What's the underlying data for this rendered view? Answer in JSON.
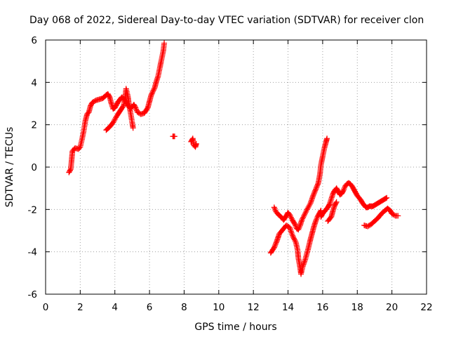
{
  "chart_data": {
    "type": "scatter",
    "title": "Day 068 of 2022, Sidereal Day-to-day VTEC variation (SDTVAR) for receiver clon",
    "xlabel": "GPS time / hours",
    "ylabel": "SDTVAR / TECUs",
    "xlim": [
      0,
      22
    ],
    "ylim": [
      -6,
      6
    ],
    "x_ticks": [
      "0",
      "2",
      "4",
      "6",
      "8",
      "10",
      "12",
      "14",
      "16",
      "18",
      "20",
      "22"
    ],
    "y_ticks": [
      "-6",
      "-4",
      "-2",
      "0",
      "2",
      "4",
      "6"
    ],
    "grid": true,
    "marker": "plus",
    "color": "#ff0000",
    "series": [
      {
        "name": "SDTVAR",
        "segments": [
          [
            [
              1.35,
              -0.25
            ],
            [
              1.45,
              -0.1
            ],
            [
              1.5,
              0.3
            ],
            [
              1.55,
              0.75
            ],
            [
              1.7,
              0.9
            ],
            [
              1.9,
              0.85
            ],
            [
              2.0,
              0.95
            ],
            [
              2.1,
              1.3
            ],
            [
              2.2,
              1.7
            ],
            [
              2.3,
              2.2
            ],
            [
              2.4,
              2.5
            ],
            [
              2.5,
              2.6
            ],
            [
              2.6,
              2.9
            ],
            [
              2.7,
              3.05
            ],
            [
              2.9,
              3.15
            ],
            [
              3.1,
              3.2
            ],
            [
              3.3,
              3.25
            ],
            [
              3.5,
              3.4
            ],
            [
              3.6,
              3.45
            ],
            [
              3.7,
              3.3
            ],
            [
              3.8,
              3.0
            ],
            [
              3.9,
              2.75
            ],
            [
              4.0,
              2.8
            ],
            [
              4.1,
              2.95
            ],
            [
              4.2,
              3.1
            ],
            [
              4.3,
              3.2
            ],
            [
              4.4,
              3.3
            ],
            [
              4.5,
              3.25
            ],
            [
              4.6,
              3.1
            ],
            [
              4.7,
              3.0
            ],
            [
              4.8,
              2.85
            ],
            [
              4.9,
              2.75
            ],
            [
              5.0,
              2.85
            ],
            [
              5.1,
              2.95
            ],
            [
              5.2,
              2.8
            ],
            [
              5.3,
              2.6
            ],
            [
              5.5,
              2.5
            ],
            [
              5.7,
              2.55
            ],
            [
              5.9,
              2.8
            ],
            [
              6.0,
              3.1
            ],
            [
              6.1,
              3.4
            ],
            [
              6.3,
              3.75
            ],
            [
              6.4,
              4.05
            ],
            [
              6.5,
              4.3
            ],
            [
              6.6,
              4.7
            ],
            [
              6.7,
              5.1
            ],
            [
              6.8,
              5.5
            ],
            [
              6.85,
              5.85
            ]
          ],
          [
            [
              3.5,
              1.75
            ],
            [
              3.7,
              1.9
            ],
            [
              3.9,
              2.1
            ],
            [
              4.1,
              2.4
            ],
            [
              4.3,
              2.65
            ],
            [
              4.5,
              2.9
            ],
            [
              4.6,
              3.3
            ],
            [
              4.65,
              3.7
            ],
            [
              4.75,
              3.35
            ],
            [
              4.8,
              3.05
            ],
            [
              4.9,
              2.6
            ],
            [
              5.0,
              2.1
            ],
            [
              5.05,
              1.85
            ]
          ],
          [
            [
              7.35,
              1.45
            ],
            [
              7.45,
              1.45
            ]
          ],
          [
            [
              8.4,
              1.2
            ],
            [
              8.5,
              1.35
            ],
            [
              8.55,
              1.05
            ],
            [
              8.65,
              0.95
            ],
            [
              8.7,
              1.1
            ]
          ],
          [
            [
              13.0,
              -4.05
            ],
            [
              13.2,
              -3.8
            ],
            [
              13.35,
              -3.5
            ],
            [
              13.5,
              -3.15
            ],
            [
              13.7,
              -2.95
            ],
            [
              13.9,
              -2.75
            ],
            [
              14.1,
              -2.85
            ],
            [
              14.2,
              -3.1
            ],
            [
              14.3,
              -3.3
            ],
            [
              14.45,
              -3.55
            ],
            [
              14.55,
              -3.9
            ],
            [
              14.6,
              -4.3
            ],
            [
              14.7,
              -4.75
            ],
            [
              14.75,
              -5.05
            ],
            [
              14.85,
              -4.7
            ],
            [
              15.0,
              -4.35
            ],
            [
              15.15,
              -3.9
            ],
            [
              15.3,
              -3.4
            ],
            [
              15.4,
              -3.1
            ],
            [
              15.5,
              -2.8
            ],
            [
              15.6,
              -2.55
            ],
            [
              15.7,
              -2.35
            ],
            [
              15.8,
              -2.2
            ],
            [
              15.9,
              -2.05
            ]
          ],
          [
            [
              13.2,
              -1.9
            ],
            [
              13.3,
              -2.1
            ],
            [
              13.45,
              -2.25
            ],
            [
              13.6,
              -2.35
            ],
            [
              13.75,
              -2.5
            ],
            [
              13.9,
              -2.3
            ],
            [
              14.0,
              -2.15
            ],
            [
              14.1,
              -2.25
            ],
            [
              14.25,
              -2.5
            ],
            [
              14.4,
              -2.7
            ],
            [
              14.5,
              -2.9
            ],
            [
              14.6,
              -2.95
            ],
            [
              14.7,
              -2.75
            ],
            [
              14.8,
              -2.5
            ],
            [
              14.95,
              -2.25
            ],
            [
              15.1,
              -2.0
            ],
            [
              15.3,
              -1.7
            ],
            [
              15.45,
              -1.35
            ],
            [
              15.6,
              -1.05
            ],
            [
              15.75,
              -0.75
            ],
            [
              15.85,
              -0.3
            ],
            [
              15.9,
              0.1
            ],
            [
              16.0,
              0.5
            ],
            [
              16.1,
              0.9
            ],
            [
              16.2,
              1.2
            ],
            [
              16.25,
              1.35
            ]
          ],
          [
            [
              15.9,
              -2.35
            ],
            [
              16.0,
              -2.2
            ],
            [
              16.1,
              -2.1
            ],
            [
              16.2,
              -2.0
            ],
            [
              16.3,
              -1.9
            ],
            [
              16.4,
              -1.75
            ],
            [
              16.5,
              -1.5
            ],
            [
              16.6,
              -1.25
            ],
            [
              16.7,
              -1.1
            ],
            [
              16.8,
              -1.0
            ],
            [
              16.9,
              -1.15
            ],
            [
              17.0,
              -1.3
            ],
            [
              17.1,
              -1.25
            ],
            [
              17.2,
              -1.1
            ],
            [
              17.3,
              -0.9
            ],
            [
              17.4,
              -0.8
            ],
            [
              17.5,
              -0.75
            ],
            [
              17.6,
              -0.8
            ],
            [
              17.7,
              -0.9
            ],
            [
              17.8,
              -1.05
            ],
            [
              17.9,
              -1.2
            ],
            [
              18.0,
              -1.35
            ],
            [
              18.1,
              -1.45
            ],
            [
              18.2,
              -1.55
            ],
            [
              18.3,
              -1.7
            ],
            [
              18.4,
              -1.8
            ],
            [
              18.5,
              -1.9
            ],
            [
              18.6,
              -1.9
            ],
            [
              18.7,
              -1.85
            ],
            [
              18.8,
              -1.85
            ],
            [
              18.9,
              -1.85
            ],
            [
              19.0,
              -1.8
            ],
            [
              19.1,
              -1.75
            ],
            [
              19.2,
              -1.7
            ],
            [
              19.3,
              -1.65
            ],
            [
              19.4,
              -1.6
            ],
            [
              19.5,
              -1.55
            ],
            [
              19.6,
              -1.5
            ],
            [
              19.7,
              -1.45
            ]
          ],
          [
            [
              16.3,
              -2.55
            ],
            [
              16.5,
              -2.35
            ],
            [
              16.6,
              -2.05
            ],
            [
              16.7,
              -1.8
            ],
            [
              16.8,
              -1.65
            ]
          ],
          [
            [
              18.4,
              -2.75
            ],
            [
              18.6,
              -2.8
            ],
            [
              18.8,
              -2.7
            ],
            [
              19.0,
              -2.55
            ],
            [
              19.2,
              -2.4
            ],
            [
              19.4,
              -2.2
            ],
            [
              19.6,
              -2.05
            ],
            [
              19.75,
              -1.95
            ],
            [
              19.9,
              -2.05
            ],
            [
              20.0,
              -2.2
            ],
            [
              20.2,
              -2.3
            ],
            [
              20.35,
              -2.3
            ]
          ]
        ]
      }
    ]
  }
}
